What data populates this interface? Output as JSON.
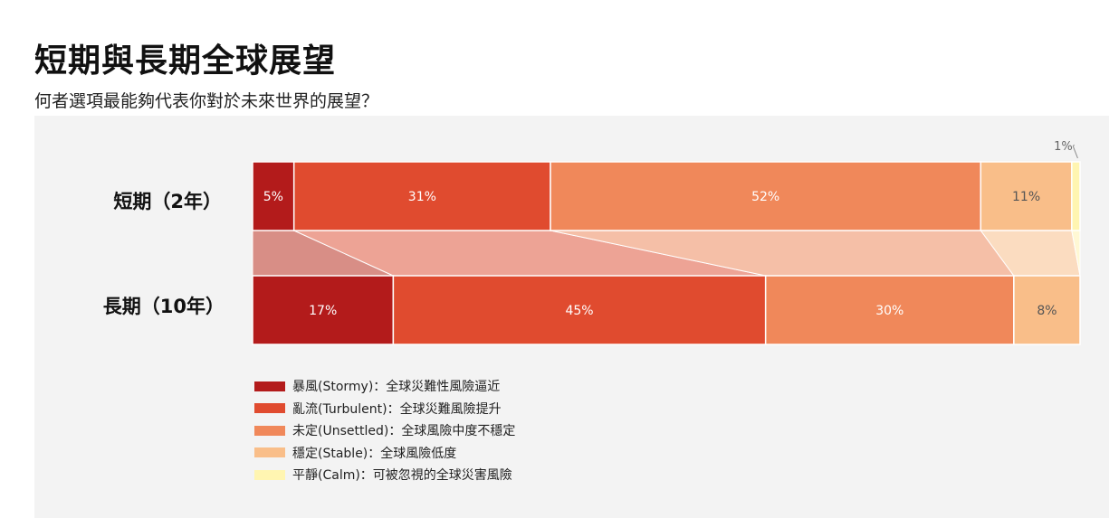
{
  "page": {
    "title": "短期與長期全球展望",
    "subtitle": "何者選項最能夠代表你對於未來世界的展望？"
  },
  "chart_data": {
    "type": "bar",
    "stacked": true,
    "normalized_percent": true,
    "orientation": "horizontal",
    "categories": [
      "短期（2年）",
      "長期（10年）"
    ],
    "series": [
      {
        "name": "暴風(Stormy)：全球災難性風險逼近",
        "color": "#b31b1b",
        "values": [
          5,
          17
        ]
      },
      {
        "name": "亂流(Turbulent)：全球災難風險提升",
        "color": "#e04b2f",
        "values": [
          31,
          45
        ]
      },
      {
        "name": "未定(Unsettled)：全球風險中度不穩定",
        "color": "#f0885a",
        "values": [
          52,
          30
        ]
      },
      {
        "name": "穩定(Stable)：全球風險低度",
        "color": "#f9be89",
        "values": [
          11,
          8
        ]
      },
      {
        "name": "平靜(Calm)：可被忽視的全球災害風險",
        "color": "#fff5b1",
        "values": [
          1,
          0
        ]
      }
    ],
    "data_labels": [
      [
        "5%",
        "31%",
        "52%",
        "11%",
        "1%"
      ],
      [
        "17%",
        "45%",
        "30%",
        "8%",
        ""
      ]
    ],
    "legend_position": "bottom-left"
  }
}
